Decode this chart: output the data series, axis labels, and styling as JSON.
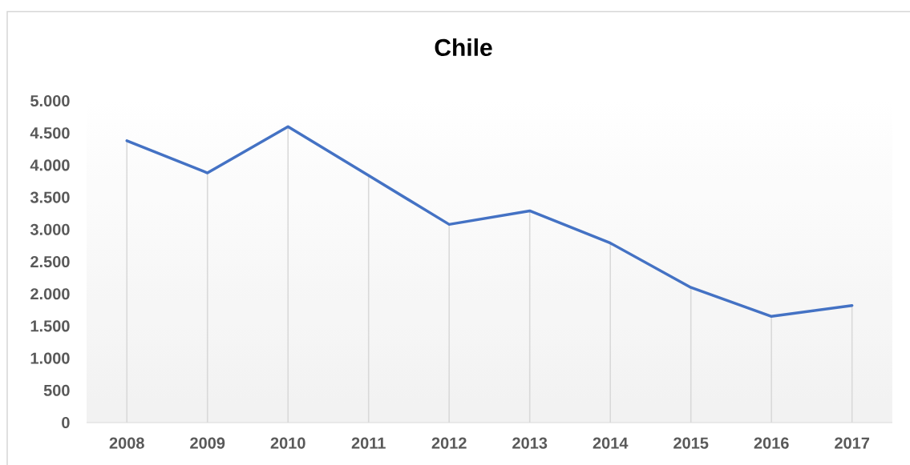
{
  "chart_data": {
    "type": "line",
    "title": "Chile",
    "categories": [
      "2008",
      "2009",
      "2010",
      "2011",
      "2012",
      "2013",
      "2014",
      "2015",
      "2016",
      "2017"
    ],
    "series": [
      {
        "color": "#4472c4",
        "values": [
          4380,
          3880,
          4600,
          3840,
          3080,
          3290,
          2790,
          2100,
          1650,
          1820
        ]
      },
      {
        "type": "bar",
        "color": "#d9d9d9",
        "values": [
          4380,
          3880,
          4600,
          3840,
          3080,
          3290,
          2790,
          2100,
          1650,
          1820
        ]
      }
    ],
    "ylim": [
      0,
      5000
    ],
    "yticks": [
      0,
      500,
      {
        "value": 1000,
        "label": "1.000"
      },
      {
        "value": 1500,
        "label": "1.500"
      },
      {
        "value": 2000,
        "label": "2.000"
      },
      {
        "value": 2500,
        "label": "2.500"
      },
      {
        "value": 3000,
        "label": "3.000"
      },
      {
        "value": 3500,
        "label": "3.500"
      },
      {
        "value": 4000,
        "label": "4.000"
      },
      {
        "value": 4500,
        "label": "4.500"
      },
      {
        "value": 5000,
        "label": "5.000"
      }
    ]
  }
}
